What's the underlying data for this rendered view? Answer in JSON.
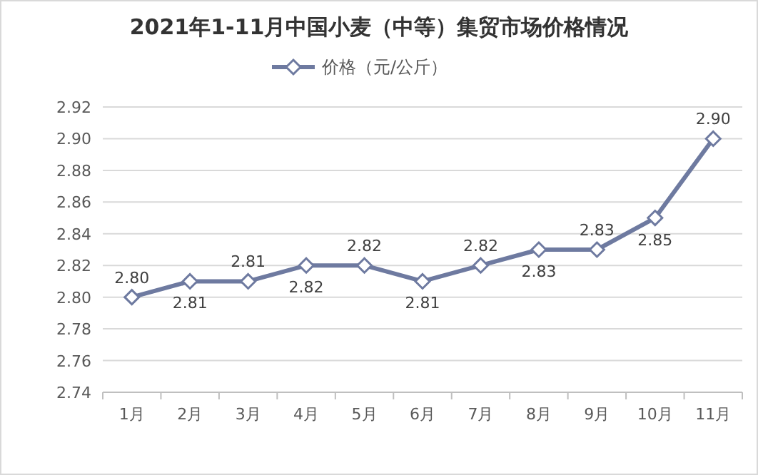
{
  "chart_data": {
    "type": "line",
    "title": "2021年1-11月中国小麦（中等）集贸市场价格情况",
    "categories": [
      "1月",
      "2月",
      "3月",
      "4月",
      "5月",
      "6月",
      "7月",
      "8月",
      "9月",
      "10月",
      "11月"
    ],
    "series": [
      {
        "name": "价格（元/公斤）",
        "color": "#6e7aa0",
        "values": [
          2.8,
          2.81,
          2.81,
          2.82,
          2.82,
          2.81,
          2.82,
          2.83,
          2.83,
          2.85,
          2.9
        ],
        "value_labels": [
          "2.80",
          "2.81",
          "2.81",
          "2.82",
          "2.82",
          "2.81",
          "2.82",
          "2.83",
          "2.83",
          "2.85",
          "2.90"
        ]
      }
    ],
    "ylim": [
      2.74,
      2.92
    ],
    "yticks": [
      2.74,
      2.76,
      2.78,
      {
        "value": 2.8,
        "label": "2.80"
      },
      2.82,
      2.84,
      2.86,
      2.88,
      {
        "value": 2.9,
        "label": "2.90"
      },
      2.92
    ],
    "grid": "y",
    "legend": "top",
    "marker": "diamond",
    "line_style": "solid"
  }
}
